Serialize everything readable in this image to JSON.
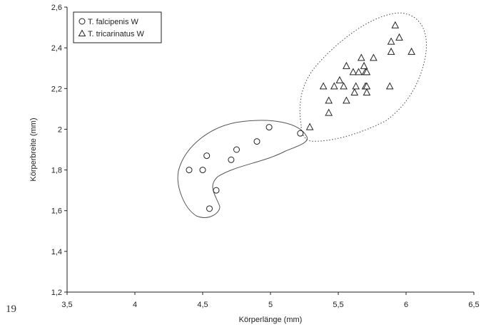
{
  "figure_number": "19",
  "chart_data": {
    "type": "scatter",
    "xlabel": "Körperlänge (mm)",
    "ylabel": "Körperbreite (mm)",
    "xlim": [
      3.5,
      6.5
    ],
    "ylim": [
      1.2,
      2.6
    ],
    "xticks": [
      "3,5",
      "4",
      "4,5",
      "5",
      "5,5",
      "6",
      "6,5"
    ],
    "yticks": [
      "1,2",
      "1,4",
      "1,6",
      "1,8",
      "2",
      "2,2",
      "2,4",
      "2,6"
    ],
    "grid": false,
    "legend_position": "top-left",
    "series": [
      {
        "name": "T. falcipenis W",
        "marker": "circle",
        "x": [
          4.4,
          4.5,
          4.53,
          4.55,
          4.6,
          4.71,
          4.75,
          4.9,
          4.99,
          5.22
        ],
        "y": [
          1.8,
          1.8,
          1.87,
          1.61,
          1.7,
          1.85,
          1.9,
          1.94,
          2.01,
          1.98
        ]
      },
      {
        "name": "T. tricarinatus W",
        "marker": "triangle",
        "x": [
          5.29,
          5.39,
          5.43,
          5.43,
          5.47,
          5.51,
          5.54,
          5.56,
          5.56,
          5.61,
          5.62,
          5.63,
          5.65,
          5.67,
          5.69,
          5.7,
          5.7,
          5.71,
          5.71,
          5.71,
          5.76,
          5.88,
          5.89,
          5.89,
          5.92,
          5.95,
          6.04
        ],
        "y": [
          2.01,
          2.21,
          2.08,
          2.14,
          2.21,
          2.24,
          2.21,
          2.14,
          2.31,
          2.28,
          2.18,
          2.21,
          2.28,
          2.35,
          2.31,
          2.28,
          2.21,
          2.18,
          2.21,
          2.28,
          2.35,
          2.21,
          2.38,
          2.43,
          2.51,
          2.45,
          2.38
        ]
      }
    ]
  }
}
